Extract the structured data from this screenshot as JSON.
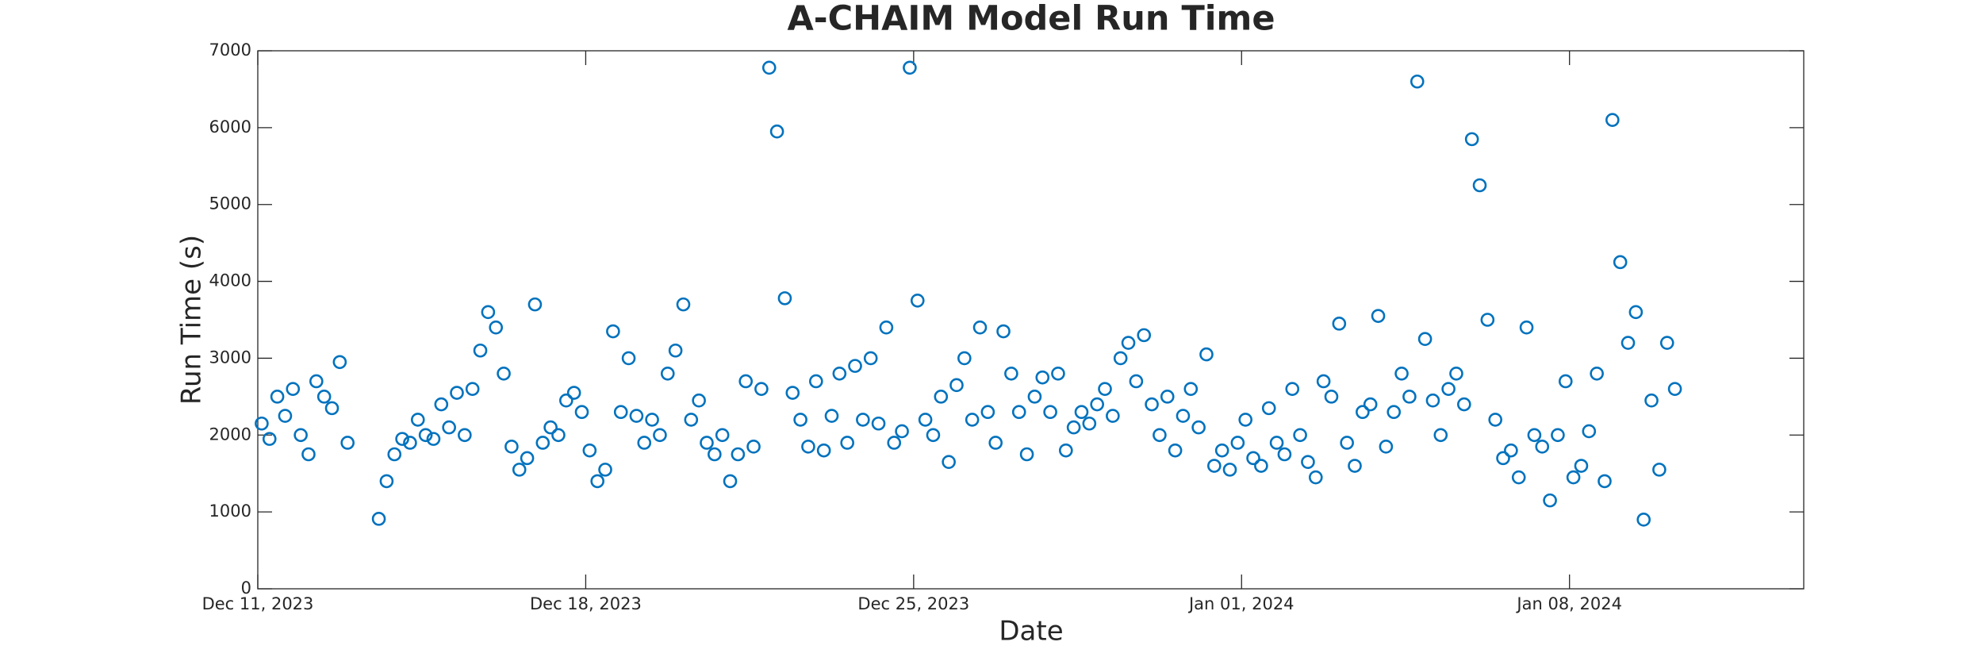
{
  "chart_data": {
    "type": "scatter",
    "title": "A-CHAIM Model Run Time",
    "xlabel": "Date",
    "ylabel": "Run Time (s)",
    "color": "#0072bd",
    "xlim": [
      "2023-12-11",
      "2024-01-13"
    ],
    "xticks": [
      {
        "value": "2023-12-11",
        "label": "Dec 11, 2023"
      },
      {
        "value": "2023-12-18",
        "label": "Dec 18, 2023"
      },
      {
        "value": "2023-12-25",
        "label": "Dec 25, 2023"
      },
      {
        "value": "2024-01-01",
        "label": "Jan 01, 2024"
      },
      {
        "value": "2024-01-08",
        "label": "Jan 08, 2024"
      }
    ],
    "ylim": [
      0,
      7000
    ],
    "yticks": [
      0,
      1000,
      2000,
      3000,
      4000,
      5000,
      6000,
      7000
    ],
    "x": [
      "2023-12-11T02:00",
      "2023-12-11T06:00",
      "2023-12-11T10:00",
      "2023-12-11T14:00",
      "2023-12-11T18:00",
      "2023-12-11T22:00",
      "2023-12-12T02:00",
      "2023-12-12T06:00",
      "2023-12-12T10:00",
      "2023-12-12T14:00",
      "2023-12-12T18:00",
      "2023-12-12T22:00",
      "2023-12-13T14:00",
      "2023-12-13T18:00",
      "2023-12-13T22:00",
      "2023-12-14T02:00",
      "2023-12-14T06:00",
      "2023-12-14T10:00",
      "2023-12-14T14:00",
      "2023-12-14T18:00",
      "2023-12-14T22:00",
      "2023-12-15T02:00",
      "2023-12-15T06:00",
      "2023-12-15T10:00",
      "2023-12-15T14:00",
      "2023-12-15T18:00",
      "2023-12-15T22:00",
      "2023-12-16T02:00",
      "2023-12-16T06:00",
      "2023-12-16T10:00",
      "2023-12-16T14:00",
      "2023-12-16T18:00",
      "2023-12-16T22:00",
      "2023-12-17T02:00",
      "2023-12-17T06:00",
      "2023-12-17T10:00",
      "2023-12-17T14:00",
      "2023-12-17T18:00",
      "2023-12-17T22:00",
      "2023-12-18T02:00",
      "2023-12-18T06:00",
      "2023-12-18T10:00",
      "2023-12-18T14:00",
      "2023-12-18T18:00",
      "2023-12-18T22:00",
      "2023-12-19T02:00",
      "2023-12-19T06:00",
      "2023-12-19T10:00",
      "2023-12-19T14:00",
      "2023-12-19T18:00",
      "2023-12-19T22:00",
      "2023-12-20T02:00",
      "2023-12-20T06:00",
      "2023-12-20T10:00",
      "2023-12-20T14:00",
      "2023-12-20T18:00",
      "2023-12-20T22:00",
      "2023-12-21T02:00",
      "2023-12-21T06:00",
      "2023-12-21T10:00",
      "2023-12-21T14:00",
      "2023-12-21T18:00",
      "2023-12-21T22:00",
      "2023-12-22T02:00",
      "2023-12-22T06:00",
      "2023-12-22T10:00",
      "2023-12-22T14:00",
      "2023-12-22T18:00",
      "2023-12-22T22:00",
      "2023-12-23T02:00",
      "2023-12-23T06:00",
      "2023-12-23T10:00",
      "2023-12-23T14:00",
      "2023-12-23T18:00",
      "2023-12-23T22:00",
      "2023-12-24T02:00",
      "2023-12-24T06:00",
      "2023-12-24T10:00",
      "2023-12-24T14:00",
      "2023-12-24T18:00",
      "2023-12-24T22:00",
      "2023-12-25T02:00",
      "2023-12-25T06:00",
      "2023-12-25T10:00",
      "2023-12-25T14:00",
      "2023-12-25T18:00",
      "2023-12-25T22:00",
      "2023-12-26T02:00",
      "2023-12-26T06:00",
      "2023-12-26T10:00",
      "2023-12-26T14:00",
      "2023-12-26T18:00",
      "2023-12-26T22:00",
      "2023-12-27T02:00",
      "2023-12-27T06:00",
      "2023-12-27T10:00",
      "2023-12-27T14:00",
      "2023-12-27T18:00",
      "2023-12-27T22:00",
      "2023-12-28T02:00",
      "2023-12-28T06:00",
      "2023-12-28T10:00",
      "2023-12-28T14:00",
      "2023-12-28T18:00",
      "2023-12-28T22:00",
      "2023-12-29T02:00",
      "2023-12-29T06:00",
      "2023-12-29T10:00",
      "2023-12-29T14:00",
      "2023-12-29T18:00",
      "2023-12-29T22:00",
      "2023-12-30T02:00",
      "2023-12-30T06:00",
      "2023-12-30T10:00",
      "2023-12-30T14:00",
      "2023-12-30T18:00",
      "2023-12-30T22:00",
      "2023-12-31T02:00",
      "2023-12-31T06:00",
      "2023-12-31T10:00",
      "2023-12-31T14:00",
      "2023-12-31T18:00",
      "2023-12-31T22:00",
      "2024-01-01T02:00",
      "2024-01-01T06:00",
      "2024-01-01T10:00",
      "2024-01-01T14:00",
      "2024-01-01T18:00",
      "2024-01-01T22:00",
      "2024-01-02T02:00",
      "2024-01-02T06:00",
      "2024-01-02T10:00",
      "2024-01-02T14:00",
      "2024-01-02T18:00",
      "2024-01-02T22:00",
      "2024-01-03T02:00",
      "2024-01-03T06:00",
      "2024-01-03T10:00",
      "2024-01-03T14:00",
      "2024-01-03T18:00",
      "2024-01-03T22:00",
      "2024-01-04T02:00",
      "2024-01-04T06:00",
      "2024-01-04T10:00",
      "2024-01-04T14:00",
      "2024-01-04T18:00",
      "2024-01-04T22:00",
      "2024-01-05T02:00",
      "2024-01-05T06:00",
      "2024-01-05T10:00",
      "2024-01-05T14:00",
      "2024-01-05T18:00",
      "2024-01-05T22:00",
      "2024-01-06T02:00",
      "2024-01-06T06:00",
      "2024-01-06T10:00",
      "2024-01-06T14:00",
      "2024-01-06T18:00",
      "2024-01-06T22:00",
      "2024-01-07T02:00",
      "2024-01-07T06:00",
      "2024-01-07T10:00",
      "2024-01-07T14:00",
      "2024-01-07T18:00",
      "2024-01-07T22:00",
      "2024-01-08T02:00",
      "2024-01-08T06:00",
      "2024-01-08T10:00",
      "2024-01-08T14:00",
      "2024-01-08T18:00",
      "2024-01-08T22:00",
      "2024-01-09T02:00",
      "2024-01-09T06:00",
      "2024-01-09T10:00",
      "2024-01-09T14:00",
      "2024-01-09T18:00",
      "2024-01-09T22:00",
      "2024-01-10T02:00",
      "2024-01-10T06:00"
    ],
    "values": [
      2150,
      1950,
      2500,
      2250,
      2600,
      2000,
      1750,
      2700,
      2500,
      2350,
      2950,
      1900,
      910,
      1400,
      1750,
      1950,
      1900,
      2200,
      2000,
      1950,
      2400,
      2100,
      2550,
      2000,
      2600,
      3100,
      3600,
      3400,
      2800,
      1850,
      1550,
      1700,
      3700,
      1900,
      2100,
      2000,
      2450,
      2550,
      2300,
      1800,
      1400,
      1550,
      3350,
      2300,
      3000,
      2250,
      1900,
      2200,
      2000,
      2800,
      3100,
      3700,
      2200,
      2450,
      1900,
      1750,
      2000,
      1400,
      1750,
      2700,
      1850,
      2600,
      6780,
      5950,
      3780,
      2550,
      2200,
      1850,
      2700,
      1800,
      2250,
      2800,
      1900,
      2900,
      2200,
      3000,
      2150,
      3400,
      1900,
      2050,
      6780,
      3750,
      2200,
      2000,
      2500,
      1650,
      2650,
      3000,
      2200,
      3400,
      2300,
      1900,
      3350,
      2800,
      2300,
      1750,
      2500,
      2750,
      2300,
      2800,
      1800,
      2100,
      2300,
      2150,
      2400,
      2600,
      2250,
      3000,
      3200,
      2700,
      3300,
      2400,
      2000,
      2500,
      1800,
      2250,
      2600,
      2100,
      3050,
      1600,
      1800,
      1550,
      1900,
      2200,
      1700,
      1600,
      2350,
      1900,
      1750,
      2600,
      2000,
      1650,
      1450,
      2700,
      2500,
      3450,
      1900,
      1600,
      2300,
      2400,
      3550,
      1850,
      2300,
      2800,
      2500,
      6600,
      3250,
      2450,
      2000,
      2600,
      2800,
      2400,
      5850,
      5250,
      3500,
      2200,
      1700,
      1800,
      1450,
      3400,
      2000,
      1850,
      1150,
      2000,
      2700,
      1450,
      1600,
      2050,
      2800,
      1400,
      6100,
      4250,
      3200,
      3600,
      900,
      2450,
      1550,
      3200,
      2600
    ]
  }
}
